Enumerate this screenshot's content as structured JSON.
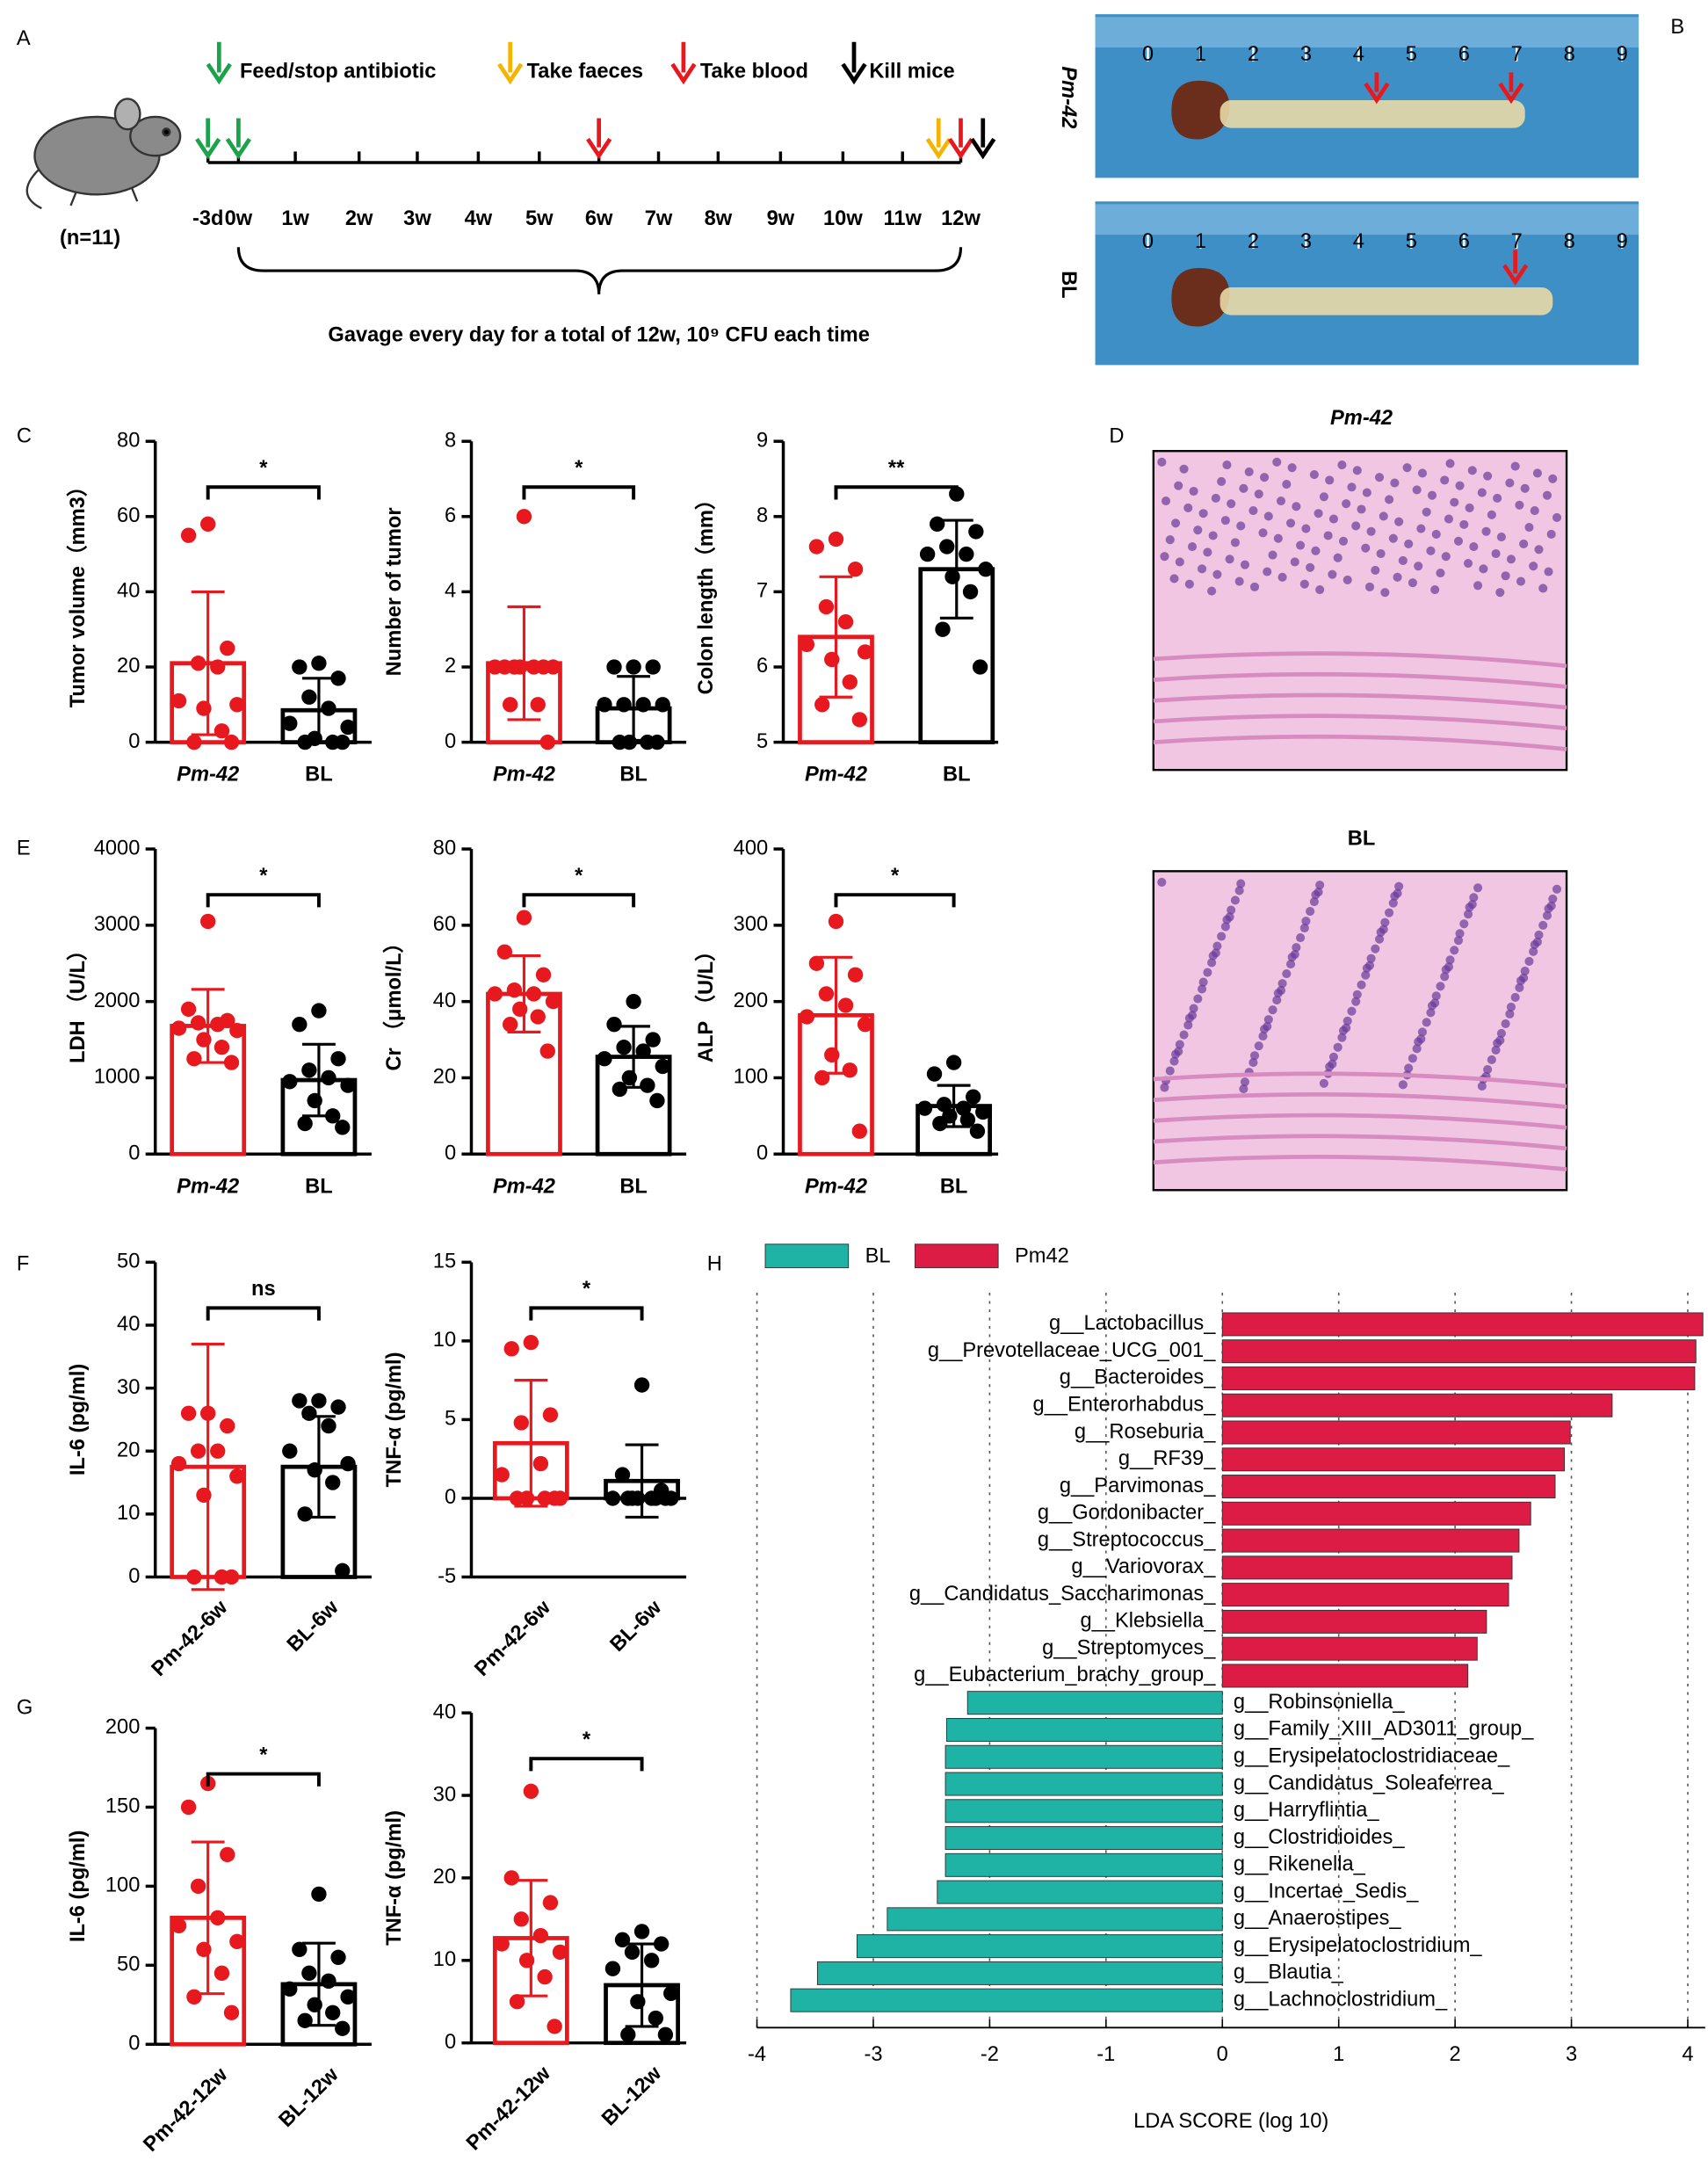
{
  "panels": [
    "A",
    "B",
    "C",
    "D",
    "E",
    "F",
    "G",
    "H"
  ],
  "timeline": {
    "legend": [
      "Feed/stop antibiotic",
      "Take faeces",
      "Take blood",
      "Kill mice"
    ],
    "subjects": "(n=11)",
    "ticks": [
      "-3d",
      "0w",
      "1w",
      "2w",
      "3w",
      "4w",
      "5w",
      "6w",
      "7w",
      "8w",
      "9w",
      "10w",
      "11w",
      "12w"
    ],
    "note": "Gavage every day for a total of 12w, 10⁹ CFU each time"
  },
  "photos": {
    "labels": [
      "Pm-42",
      "BL"
    ],
    "ruler": [
      0,
      1,
      2,
      3,
      4,
      5,
      6,
      7,
      8,
      9
    ]
  },
  "histology": {
    "titles": [
      "Pm-42",
      "BL"
    ]
  },
  "chart_data": [
    {
      "type": "bar",
      "ylabel": "Tumor volume（mm3）",
      "categories": [
        "Pm-42",
        "BL"
      ],
      "colors": [
        "#e8191e",
        "#000000"
      ],
      "sig": "*",
      "values": [
        21,
        8.5
      ],
      "errors": [
        19,
        8.5
      ],
      "points": [
        [
          58,
          55,
          25,
          21,
          20,
          11,
          10,
          9,
          3,
          0,
          0
        ],
        [
          21,
          20,
          17,
          12,
          9,
          5,
          4,
          1,
          0,
          0,
          0
        ]
      ],
      "ylim": [
        0,
        80
      ],
      "yticks": [
        0,
        20,
        40,
        60,
        80
      ]
    },
    {
      "type": "bar",
      "ylabel": "Number of tumor",
      "categories": [
        "Pm-42",
        "BL"
      ],
      "colors": [
        "#e8191e",
        "#000000"
      ],
      "sig": "*",
      "values": [
        2.1,
        0.9
      ],
      "errors": [
        1.5,
        0.85
      ],
      "points": [
        [
          6,
          2,
          2,
          2,
          2,
          2,
          2,
          2,
          1,
          1,
          0
        ],
        [
          2,
          2,
          2,
          1,
          1,
          1,
          1,
          0,
          0,
          0,
          0
        ]
      ],
      "ylim": [
        0,
        8
      ],
      "yticks": [
        0,
        2,
        4,
        6,
        8
      ]
    },
    {
      "type": "bar",
      "ylabel": "Colon length（mm）",
      "categories": [
        "Pm-42",
        "BL"
      ],
      "colors": [
        "#e8191e",
        "#000000"
      ],
      "sig": "**",
      "values": [
        6.4,
        7.3
      ],
      "errors": [
        0.8,
        0.65
      ],
      "points": [
        [
          7.7,
          7.6,
          7.3,
          6.8,
          6.6,
          6.3,
          6.2,
          6.1,
          5.8,
          5.5,
          5.3
        ],
        [
          8.3,
          7.9,
          7.8,
          7.6,
          7.5,
          7.5,
          7.3,
          7.2,
          7.0,
          6.5,
          6.0
        ]
      ],
      "ylim": [
        5,
        9
      ],
      "yticks": [
        5,
        6,
        7,
        8,
        9
      ]
    },
    {
      "type": "bar",
      "ylabel": "LDH （U/L）",
      "categories": [
        "Pm-42",
        "BL"
      ],
      "colors": [
        "#e8191e",
        "#000000"
      ],
      "sig": "*",
      "values": [
        1680,
        970
      ],
      "errors": [
        480,
        470
      ],
      "points": [
        [
          3050,
          1900,
          1750,
          1720,
          1700,
          1650,
          1620,
          1500,
          1400,
          1250,
          1200
        ],
        [
          1880,
          1700,
          1250,
          1100,
          1000,
          950,
          900,
          700,
          500,
          400,
          350
        ]
      ],
      "ylim": [
        0,
        4000
      ],
      "yticks": [
        0,
        1000,
        2000,
        3000,
        4000
      ]
    },
    {
      "type": "bar",
      "ylabel": "Cr （μmol/L）",
      "categories": [
        "Pm-42",
        "BL"
      ],
      "colors": [
        "#e8191e",
        "#000000"
      ],
      "sig": "*",
      "values": [
        42,
        25.5
      ],
      "errors": [
        10,
        8
      ],
      "points": [
        [
          62,
          53,
          47,
          43,
          42,
          42,
          40,
          38,
          36,
          34,
          27
        ],
        [
          40,
          34,
          30,
          28,
          27,
          25,
          23,
          20,
          18,
          17,
          14
        ]
      ],
      "ylim": [
        0,
        80
      ],
      "yticks": [
        0,
        20,
        40,
        60,
        80
      ]
    },
    {
      "type": "bar",
      "ylabel": "ALP （U/L）",
      "categories": [
        "Pm-42",
        "BL"
      ],
      "colors": [
        "#e8191e",
        "#000000"
      ],
      "sig": "*",
      "values": [
        182,
        63
      ],
      "errors": [
        76,
        27
      ],
      "points": [
        [
          305,
          250,
          235,
          210,
          195,
          180,
          170,
          130,
          110,
          100,
          30
        ],
        [
          120,
          105,
          75,
          65,
          60,
          60,
          55,
          50,
          45,
          40,
          30
        ]
      ],
      "ylim": [
        0,
        400
      ],
      "yticks": [
        0,
        100,
        200,
        300,
        400
      ]
    },
    {
      "type": "bar",
      "ylabel": "IL-6 (pg/ml)",
      "categories": [
        "Pm-42-6w",
        "BL-6w"
      ],
      "colors": [
        "#e8191e",
        "#000000"
      ],
      "sig": "ns",
      "values": [
        17.5,
        17.5
      ],
      "errors": [
        19.5,
        8
      ],
      "points": [
        [
          26,
          26,
          24,
          20,
          20,
          18,
          16,
          13,
          0,
          0,
          0
        ],
        [
          28,
          28,
          27,
          26,
          24,
          20,
          18,
          17,
          15,
          10,
          1
        ]
      ],
      "ylim": [
        0,
        50
      ],
      "yticks": [
        0,
        10,
        20,
        30,
        40,
        50
      ]
    },
    {
      "type": "bar",
      "ylabel": "TNF-α (pg/ml)",
      "categories": [
        "Pm-42-6w",
        "BL-6w"
      ],
      "colors": [
        "#e8191e",
        "#000000"
      ],
      "sig": "*",
      "values": [
        3.5,
        1.1
      ],
      "errors": [
        4,
        2.3
      ],
      "points": [
        [
          9.9,
          9.5,
          5.3,
          4.8,
          2.2,
          1.5,
          0,
          0,
          0,
          0,
          0
        ],
        [
          7.2,
          1.5,
          0.5,
          0,
          0,
          0,
          0,
          0,
          0,
          0,
          0
        ]
      ],
      "ylim": [
        -5,
        15
      ],
      "yticks": [
        -5,
        0,
        5,
        10,
        15
      ]
    },
    {
      "type": "bar",
      "ylabel": "IL-6 (pg/ml)",
      "categories": [
        "Pm-42-12w",
        "BL-12w"
      ],
      "colors": [
        "#e8191e",
        "#000000"
      ],
      "sig": "*",
      "values": [
        80,
        38
      ],
      "errors": [
        48,
        26
      ],
      "points": [
        [
          165,
          150,
          120,
          100,
          80,
          75,
          65,
          60,
          45,
          30,
          20
        ],
        [
          95,
          60,
          55,
          45,
          40,
          35,
          30,
          25,
          20,
          15,
          10
        ]
      ],
      "ylim": [
        0,
        200
      ],
      "yticks": [
        0,
        50,
        100,
        150,
        200
      ]
    },
    {
      "type": "bar",
      "ylabel": "TNF-α (pg/ml)",
      "categories": [
        "Pm-42-12w",
        "BL-12w"
      ],
      "colors": [
        "#e8191e",
        "#000000"
      ],
      "sig": "*",
      "values": [
        12.7,
        7
      ],
      "errors": [
        7,
        5
      ],
      "points": [
        [
          30.5,
          20,
          17,
          15,
          13,
          12,
          11,
          10,
          8,
          5,
          2
        ],
        [
          13.5,
          12.5,
          12,
          11,
          10,
          9,
          6,
          5,
          3,
          1,
          1
        ]
      ],
      "ylim": [
        0,
        40
      ],
      "yticks": [
        0,
        10,
        20,
        30,
        40
      ]
    },
    {
      "type": "barh",
      "xlabel": "LDA SCORE (log 10)",
      "categories": [
        "g__Lactobacillus_",
        "g__Prevotellaceae_UCG_001_",
        "g__Bacteroides_",
        "g__Enterorhabdus_",
        "g__Roseburia_",
        "g__RF39_",
        "g__Parvimonas_",
        "g__Gordonibacter_",
        "g__Streptococcus_",
        "g__Variovorax_",
        "g__Candidatus_Saccharimonas_",
        "g__Klebsiella_",
        "g__Streptomyces_",
        "g__Eubacterium_brachy_group_",
        "g__Robinsoniella_",
        "g__Family_XIII_AD3011_group_",
        "g__Erysipelatoclostridiaceae_",
        "g__Candidatus_Soleaferrea_",
        "g__Harryflintia_",
        "g__Clostridioides_",
        "g__Rikenella_",
        "g__Incertae_Sedis_",
        "g__Anaerostipes_",
        "g__Erysipelatoclostridium_",
        "g__Blautia_",
        "g__Lachnoclostridium_"
      ],
      "series": [
        {
          "name": "BL",
          "color": "#1fb3a6",
          "values": [
            null,
            null,
            null,
            null,
            null,
            null,
            null,
            null,
            null,
            null,
            null,
            null,
            null,
            null,
            -2.19,
            -2.37,
            -2.38,
            -2.38,
            -2.38,
            -2.38,
            -2.38,
            -2.45,
            -2.88,
            -3.14,
            -3.48,
            -3.71
          ]
        },
        {
          "name": "Pm42",
          "color": "#dc1c44",
          "values": [
            4.13,
            4.07,
            4.06,
            3.35,
            2.99,
            2.94,
            2.86,
            2.65,
            2.55,
            2.49,
            2.46,
            2.27,
            2.19,
            2.11,
            null,
            null,
            null,
            null,
            null,
            null,
            null,
            null,
            null,
            null,
            null,
            null
          ]
        }
      ],
      "xlim": [
        -4,
        4.15
      ],
      "xticks": [
        -4,
        -3,
        -2,
        -1,
        0,
        1,
        2,
        3,
        4
      ],
      "grid": true
    }
  ]
}
